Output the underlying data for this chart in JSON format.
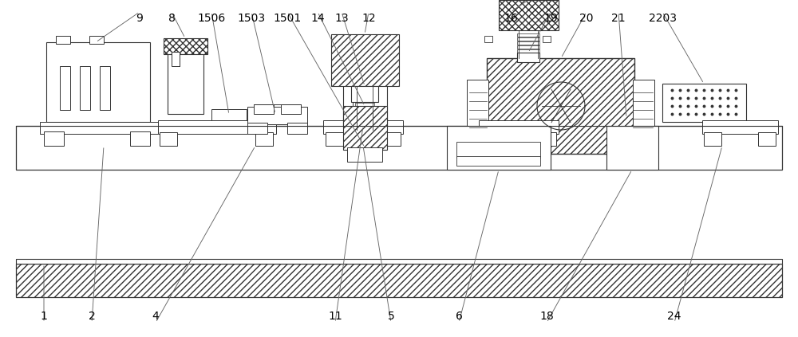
{
  "bg_color": "#ffffff",
  "lc": "#333333",
  "lw": 0.8,
  "fig_w": 10.0,
  "fig_h": 4.23
}
